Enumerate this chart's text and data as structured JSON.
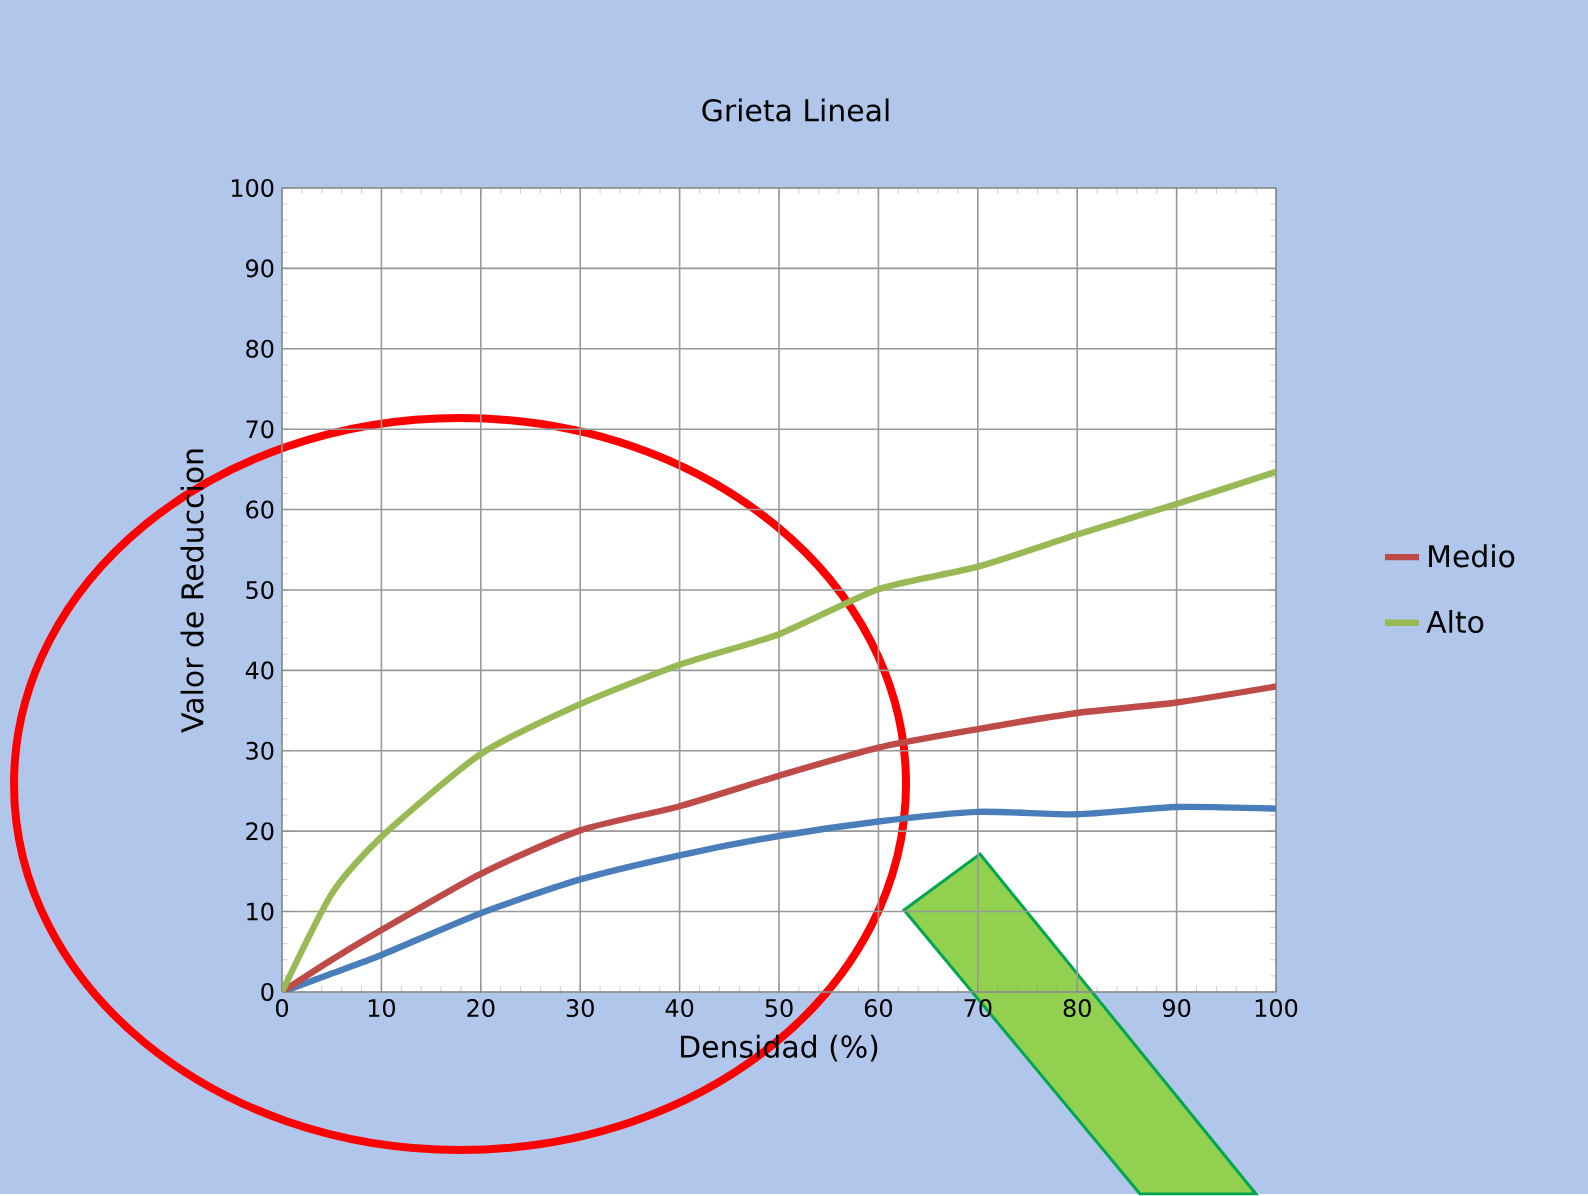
{
  "chart_data": {
    "type": "line",
    "title": "Grieta Lineal",
    "xlabel": "Densidad (%)",
    "ylabel": "Valor de Reduccion",
    "x": [
      0,
      5,
      10,
      20,
      30,
      40,
      50,
      60,
      70,
      80,
      90,
      100
    ],
    "series": [
      {
        "color": "#4a7ebb",
        "values": [
          0,
          2.3,
          4.6,
          9.8,
          14.0,
          17.0,
          19.4,
          21.2,
          22.4,
          22.1,
          23.0,
          22.8
        ]
      },
      {
        "name": "Medio",
        "color": "#be4b48",
        "values": [
          0,
          4,
          7.7,
          14.7,
          20.1,
          23.1,
          26.9,
          30.4,
          32.7,
          34.7,
          36.0,
          38.0
        ]
      },
      {
        "name": "Alto",
        "color": "#98b954",
        "values": [
          0,
          12.2,
          19.3,
          29.6,
          35.8,
          40.7,
          44.5,
          50.1,
          52.9,
          56.9,
          60.7,
          64.7
        ]
      }
    ],
    "xlim": [
      0,
      100
    ],
    "ylim": [
      0,
      100
    ],
    "xticks": [
      0,
      10,
      20,
      30,
      40,
      50,
      60,
      70,
      80,
      90,
      100
    ],
    "yticks": [
      0,
      10,
      20,
      30,
      40,
      50,
      60,
      70,
      80,
      90,
      100
    ],
    "grid": true,
    "legend": "right",
    "marker": "none",
    "line_style": "solid"
  }
}
